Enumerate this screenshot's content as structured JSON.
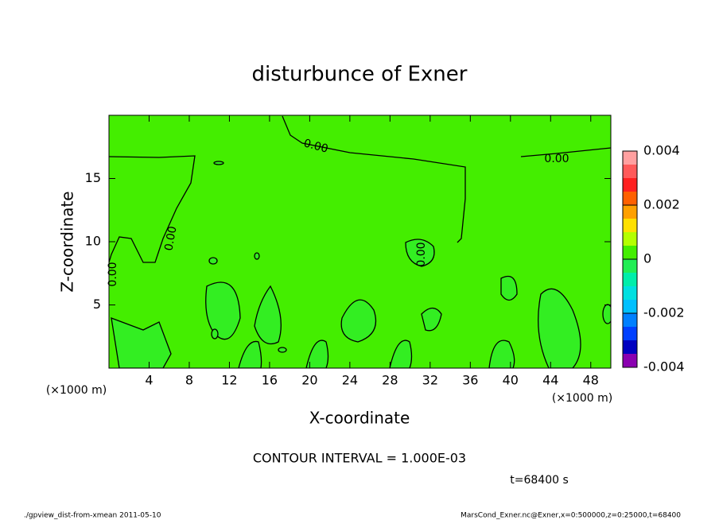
{
  "chart_data": {
    "type": "contour",
    "title": "disturbunce of Exner",
    "x_label": "X-coordinate",
    "y_label": "Z-coordinate",
    "x_unit": "(×1000 m)",
    "y_unit": "(×1000 m)",
    "xlim": [
      0,
      50
    ],
    "ylim": [
      0,
      20
    ],
    "xticks": [
      4,
      8,
      12,
      16,
      20,
      24,
      28,
      32,
      36,
      40,
      44,
      48
    ],
    "yticks": [
      5,
      10,
      15
    ],
    "contour_labels": [
      "0.00",
      "0.00",
      "0.00",
      "0.00",
      "0.00"
    ],
    "colorbar": {
      "levels": [
        -0.004,
        -0.0035,
        -0.003,
        -0.0025,
        -0.002,
        -0.0015,
        -0.001,
        -0.0005,
        0,
        0.0005,
        0.001,
        0.0015,
        0.002,
        0.0025,
        0.003,
        0.0035,
        0.004
      ],
      "colors": [
        "#8a00b0",
        "#0000c0",
        "#0040ff",
        "#0080ff",
        "#00c0ff",
        "#00e0e0",
        "#00eeaa",
        "#22ee55",
        "#44ee00",
        "#b4ff00",
        "#ffe000",
        "#ffa000",
        "#ff6000",
        "#ff2020",
        "#ff5a5a",
        "#ffa0a0"
      ],
      "ticks": [
        -0.004,
        -0.002,
        0,
        0.002,
        0.004
      ]
    },
    "contour_interval": "CONTOUR INTERVAL = 1.000E-03",
    "time": "t=68400 s",
    "footer_left": "./gpview_dist-from-xmean  2011-05-10",
    "footer_right": "MarsCond_Exner.nc@Exner,x=0:500000,z=0:25000,t=68400"
  }
}
